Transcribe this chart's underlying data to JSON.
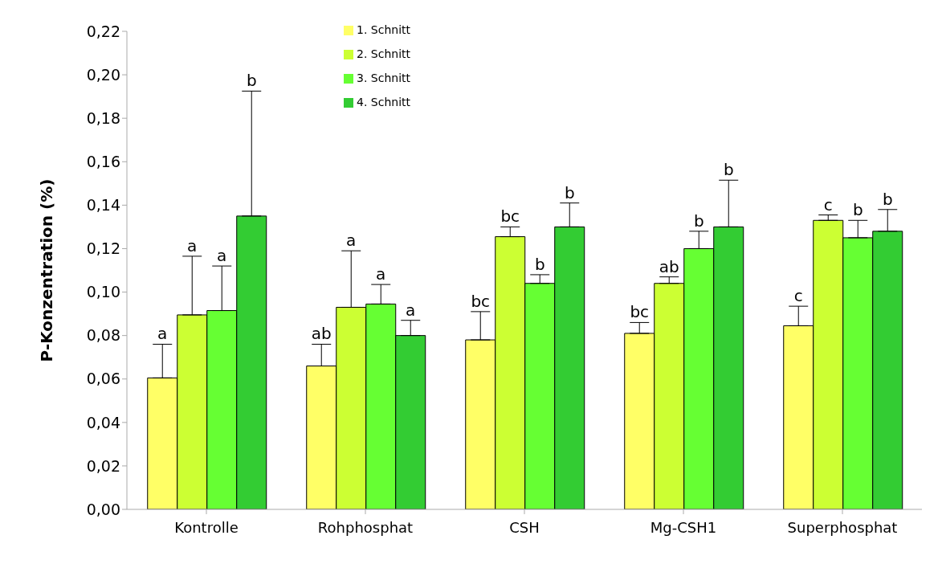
{
  "chart_data": {
    "type": "bar",
    "ylabel": "P-Konzentration (%)",
    "categories": [
      "Kontrolle",
      "Rohphosphat",
      "CSH",
      "Mg-CSH1",
      "Superphosphat"
    ],
    "series": [
      {
        "name": "1. Schnitt",
        "color": "#ffff66",
        "values": [
          0.0605,
          0.066,
          0.078,
          0.081,
          0.0845
        ],
        "errors": [
          [
            0.0605,
            0.076
          ],
          [
            0.066,
            0.076
          ],
          [
            0.078,
            0.091
          ],
          [
            0.081,
            0.086
          ],
          [
            0.0845,
            0.0935
          ]
        ]
      },
      {
        "name": "2. Schnitt",
        "color": "#ccff33",
        "values": [
          0.0895,
          0.093,
          0.1255,
          0.104,
          0.133
        ],
        "errors": [
          [
            0.0895,
            0.1165
          ],
          [
            0.093,
            0.119
          ],
          [
            0.1255,
            0.13
          ],
          [
            0.104,
            0.107
          ],
          [
            0.133,
            0.1355
          ]
        ]
      },
      {
        "name": "3. Schnitt",
        "color": "#66ff33",
        "values": [
          0.0915,
          0.0945,
          0.104,
          0.12,
          0.125
        ],
        "errors": [
          [
            0.0915,
            0.112
          ],
          [
            0.0945,
            0.1035
          ],
          [
            0.104,
            0.108
          ],
          [
            0.12,
            0.128
          ],
          [
            0.125,
            0.133
          ]
        ]
      },
      {
        "name": "4. Schnitt",
        "color": "#33cc33",
        "values": [
          0.135,
          0.08,
          0.13,
          0.13,
          0.128
        ],
        "errors": [
          [
            0.135,
            0.1925
          ],
          [
            0.08,
            0.087
          ],
          [
            0.13,
            0.141
          ],
          [
            0.13,
            0.1515
          ],
          [
            0.128,
            0.138
          ]
        ]
      }
    ],
    "annotations": [
      "a",
      "a",
      "a",
      "b",
      "ab",
      "a",
      "a",
      "a",
      "bc",
      "bc",
      "b",
      "b",
      "bc",
      "ab",
      "b",
      "b",
      "c",
      "c",
      "b",
      "b"
    ],
    "ylim": [
      0,
      0.22
    ],
    "yticks": [
      {
        "value": 0,
        "label": "0,00"
      },
      {
        "value": 0.02,
        "label": "0,02"
      },
      {
        "value": 0.04,
        "label": "0,04"
      },
      {
        "value": 0.06,
        "label": "0,06"
      },
      {
        "value": 0.08,
        "label": "0,08"
      },
      {
        "value": 0.1,
        "label": "0,10"
      },
      {
        "value": 0.12,
        "label": "0,12"
      },
      {
        "value": 0.14,
        "label": "0,14"
      },
      {
        "value": 0.16,
        "label": "0,16"
      },
      {
        "value": 0.18,
        "label": "0,18"
      },
      {
        "value": 0.2,
        "label": "0,20"
      },
      {
        "value": 0.22,
        "label": "0,22"
      }
    ],
    "grid": false,
    "legend": "top"
  }
}
